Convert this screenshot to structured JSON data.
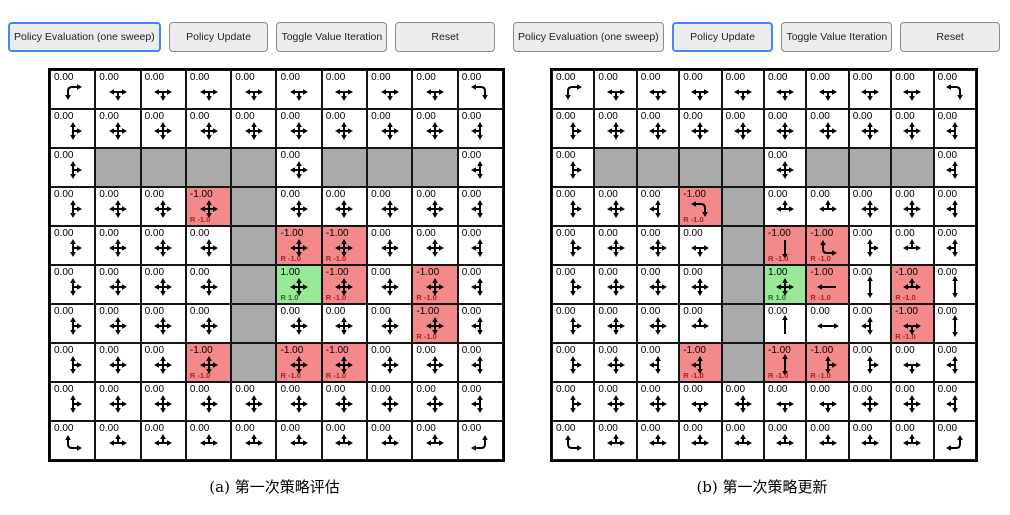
{
  "colors": {
    "wall_bg": "#aaaaaa",
    "penalty_bg": "#f4898b",
    "reward_bg": "#97e897",
    "penalty_label_text": "#a32424",
    "reward_label_text": "#1e7a1e",
    "active_button_border": "#4285f4",
    "arrow": "#000000"
  },
  "cell_legend": {
    "wall_token": "W",
    "plain_value": "0.00",
    "penalty_value": "-1.00",
    "reward_value": "1.00",
    "penalty_label": "R -1.0",
    "reward_label": "R 1.0"
  },
  "panels": [
    {
      "name": "a",
      "caption": "(a) 第一次策略评估",
      "buttons": [
        {
          "name": "policy-evaluation-button",
          "label": "Policy Evaluation (one sweep)",
          "active": true
        },
        {
          "name": "policy-update-button",
          "label": "Policy Update",
          "active": false
        },
        {
          "name": "toggle-value-iteration-button",
          "label": "Toggle Value Iteration",
          "active": false
        },
        {
          "name": "reset-button",
          "label": "Reset",
          "active": false
        }
      ],
      "grid": [
        [
          "RD",
          "LRD",
          "LRD",
          "LRD",
          "LRD",
          "LRD",
          "LRD",
          "LRD",
          "LRD",
          "LD"
        ],
        [
          "UDR",
          "UDLR",
          "UDLR",
          "UDLR",
          "UDLR",
          "UDLR",
          "UDLR",
          "UDLR",
          "UDLR",
          "UDL"
        ],
        [
          "UDR",
          "W",
          "W",
          "W",
          "W",
          "UDLR",
          "W",
          "W",
          "W",
          "UDL"
        ],
        [
          "UDR",
          "UDLR",
          "UDLR",
          "-UDLR",
          "W",
          "UDLR",
          "UDLR",
          "UDLR",
          "UDLR",
          "UDL"
        ],
        [
          "UDR",
          "UDLR",
          "UDLR",
          "UDLR",
          "W",
          "-UDLR",
          "-UDLR",
          "UDLR",
          "UDLR",
          "UDL"
        ],
        [
          "UDR",
          "UDLR",
          "UDLR",
          "UDLR",
          "W",
          "+UDLR",
          "-UDLR",
          "UDLR",
          "-UDLR",
          "UDL"
        ],
        [
          "UDR",
          "UDLR",
          "UDLR",
          "UDLR",
          "W",
          "UDLR",
          "UDLR",
          "UDLR",
          "-UDLR",
          "UDL"
        ],
        [
          "UDR",
          "UDLR",
          "UDLR",
          "-UDLR",
          "W",
          "-UDLR",
          "-UDLR",
          "UDLR",
          "UDLR",
          "UDL"
        ],
        [
          "UDR",
          "UDLR",
          "UDLR",
          "UDLR",
          "UDLR",
          "UDLR",
          "UDLR",
          "UDLR",
          "UDLR",
          "UDL"
        ],
        [
          "UR",
          "ULR",
          "ULR",
          "ULR",
          "ULR",
          "ULR",
          "ULR",
          "ULR",
          "ULR",
          "UL"
        ]
      ]
    },
    {
      "name": "b",
      "caption": "(b) 第一次策略更新",
      "buttons": [
        {
          "name": "policy-evaluation-button",
          "label": "Policy Evaluation (one sweep)",
          "active": false
        },
        {
          "name": "policy-update-button",
          "label": "Policy Update",
          "active": true
        },
        {
          "name": "toggle-value-iteration-button",
          "label": "Toggle Value Iteration",
          "active": false
        },
        {
          "name": "reset-button",
          "label": "Reset",
          "active": false
        }
      ],
      "grid": [
        [
          "RD",
          "LRD",
          "LRD",
          "LRD",
          "LRD",
          "LRD",
          "LRD",
          "LRD",
          "LRD",
          "LD"
        ],
        [
          "UDR",
          "UDLR",
          "UDLR",
          "UDLR",
          "UDLR",
          "UDLR",
          "UDLR",
          "UDLR",
          "UDLR",
          "UDL"
        ],
        [
          "UDR",
          "W",
          "W",
          "W",
          "W",
          "UDLR",
          "W",
          "W",
          "W",
          "UDL"
        ],
        [
          "UDR",
          "UDLR",
          "UDL",
          "-DL",
          "W",
          "ULR",
          "ULR",
          "UDLR",
          "UDLR",
          "UDL"
        ],
        [
          "UDR",
          "UDLR",
          "UDLR",
          "DLR",
          "W",
          "-D",
          "-UR",
          "UDR",
          "ULR",
          "UDL"
        ],
        [
          "UDR",
          "UDLR",
          "UDLR",
          "UDLR",
          "W",
          "+UDLR",
          "-L",
          "UD",
          "-ULR",
          "UD"
        ],
        [
          "UDR",
          "UDLR",
          "UDLR",
          "ULR",
          "W",
          "U",
          "LR",
          "UDL",
          "-DLR",
          "UD"
        ],
        [
          "UDR",
          "UDLR",
          "UDL",
          "-UDL",
          "W",
          "-UD",
          "-UDR",
          "UDR",
          "DLR",
          "UDL"
        ],
        [
          "UDR",
          "UDLR",
          "UDLR",
          "DLR",
          "UDLR",
          "DLR",
          "DLR",
          "UDLR",
          "UDLR",
          "UDL"
        ],
        [
          "UR",
          "ULR",
          "ULR",
          "ULR",
          "ULR",
          "ULR",
          "ULR",
          "ULR",
          "ULR",
          "UL"
        ]
      ]
    }
  ]
}
